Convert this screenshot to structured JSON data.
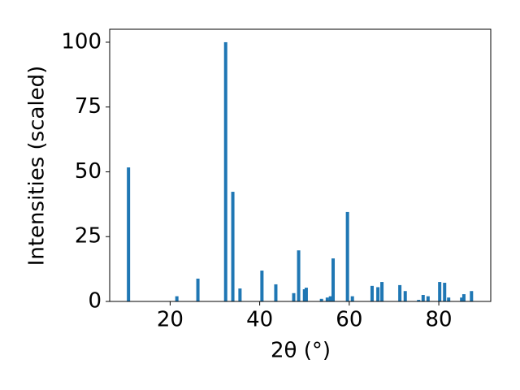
{
  "chart_data": {
    "type": "bar",
    "color": "#1f77b4",
    "xlabel": "2θ (°)",
    "ylabel": "Intensities (scaled)",
    "x": [
      10.7,
      21.5,
      26.2,
      32.4,
      34.0,
      35.6,
      40.5,
      43.6,
      47.6,
      48.7,
      50.0,
      50.4,
      53.8,
      55.1,
      55.8,
      56.4,
      59.6,
      60.7,
      65.1,
      66.4,
      67.3,
      71.3,
      72.5,
      75.5,
      76.5,
      77.6,
      80.2,
      81.3,
      82.2,
      85.1,
      85.6,
      87.3
    ],
    "values": [
      51.7,
      2,
      8.8,
      100,
      42.3,
      5,
      11.9,
      6.6,
      3.2,
      19.7,
      4.7,
      5.3,
      1,
      1.5,
      2,
      16.6,
      34.5,
      2,
      6,
      5.5,
      7.5,
      6.3,
      4,
      0.6,
      2.5,
      2,
      7.5,
      7.2,
      1.5,
      1.5,
      2.8,
      4
    ],
    "xlim": [
      6.5,
      91.6
    ],
    "xticks": [
      20,
      40,
      60,
      80
    ],
    "ylim": [
      0,
      105
    ],
    "yticks": [
      0,
      25,
      50,
      75,
      100
    ]
  }
}
